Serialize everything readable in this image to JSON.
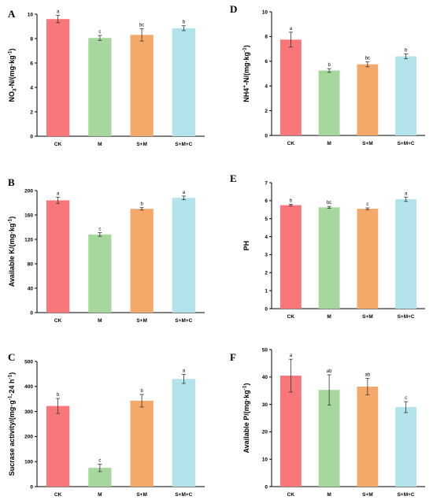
{
  "colors": [
    "#F8777A",
    "#A6D89E",
    "#F4A86A",
    "#B2E2EA"
  ],
  "chart_data": [
    {
      "type": "bar",
      "panel": "A",
      "categories": [
        "CK",
        "M",
        "S+M",
        "S+M+C"
      ],
      "values": [
        9.6,
        8.05,
        8.3,
        8.85
      ],
      "errors": [
        0.3,
        0.2,
        0.5,
        0.2
      ],
      "letters": [
        "a",
        "c",
        "bc",
        "b"
      ],
      "ylabel": [
        "NO",
        "3",
        "-N/(mg·kg",
        "-1",
        ")"
      ],
      "ylim": [
        0,
        10
      ],
      "yticks": [
        "0",
        "2",
        "4",
        "6",
        "8",
        "10"
      ]
    },
    {
      "type": "bar",
      "panel": "D",
      "categories": [
        "CK",
        "M",
        "S+M",
        "S+M+C"
      ],
      "values": [
        7.75,
        5.25,
        5.75,
        6.4
      ],
      "errors": [
        0.6,
        0.15,
        0.2,
        0.2
      ],
      "letters": [
        "a",
        "b",
        "bc",
        "b"
      ],
      "ylabel": [
        "NH4",
        "+",
        "-N/(mg·kg",
        "-1",
        ")"
      ],
      "ylim": [
        0,
        10
      ],
      "yticks": [
        "0",
        "2",
        "4",
        "6",
        "8",
        "10"
      ]
    },
    {
      "type": "bar",
      "panel": "B",
      "categories": [
        "CK",
        "M",
        "S+M",
        "S+M+C"
      ],
      "values": [
        184,
        128,
        170,
        188
      ],
      "errors": [
        5,
        3,
        2,
        3
      ],
      "letters": [
        "a",
        "c",
        "b",
        "a"
      ],
      "ylabel": [
        "Available K/(mg·kg",
        "-1",
        ")"
      ],
      "ylim": [
        0,
        200
      ],
      "yticks": [
        "0",
        "40",
        "80",
        "120",
        "160",
        "200"
      ]
    },
    {
      "type": "bar",
      "panel": "E",
      "categories": [
        "CK",
        "M",
        "S+M",
        "S+M+C"
      ],
      "values": [
        5.75,
        5.63,
        5.55,
        6.08
      ],
      "errors": [
        0.05,
        0.05,
        0.05,
        0.12
      ],
      "letters": [
        "b",
        "bc",
        "c",
        "a"
      ],
      "ylabel": [
        "PH"
      ],
      "ylim": [
        0,
        7
      ],
      "yticks": [
        "0",
        "1",
        "2",
        "3",
        "4",
        "5",
        "6",
        "7"
      ]
    },
    {
      "type": "bar",
      "panel": "C",
      "categories": [
        "CK",
        "M",
        "S+M",
        "S+M+C"
      ],
      "values": [
        322,
        75,
        343,
        430
      ],
      "errors": [
        30,
        15,
        25,
        18
      ],
      "letters": [
        "b",
        "c",
        "b",
        "a"
      ],
      "ylabel": [
        "Sucrase activity/(mg·g",
        "-1",
        "·24 h",
        "-1",
        ")"
      ],
      "ylim": [
        0,
        500
      ],
      "yticks": [
        "0",
        "100",
        "200",
        "300",
        "400",
        "500"
      ]
    },
    {
      "type": "bar",
      "panel": "F",
      "categories": [
        "CK",
        "M",
        "S+M",
        "S+M+C"
      ],
      "values": [
        40.5,
        35.3,
        36.5,
        29.0
      ],
      "errors": [
        6,
        5.5,
        3,
        2
      ],
      "letters": [
        "a",
        "ab",
        "ab",
        "c"
      ],
      "ylabel": [
        "Available P/(mg·kg",
        "-1",
        ")"
      ],
      "ylim": [
        0,
        50
      ],
      "yticks": [
        "0",
        "10",
        "20",
        "30",
        "40",
        "50"
      ]
    }
  ]
}
